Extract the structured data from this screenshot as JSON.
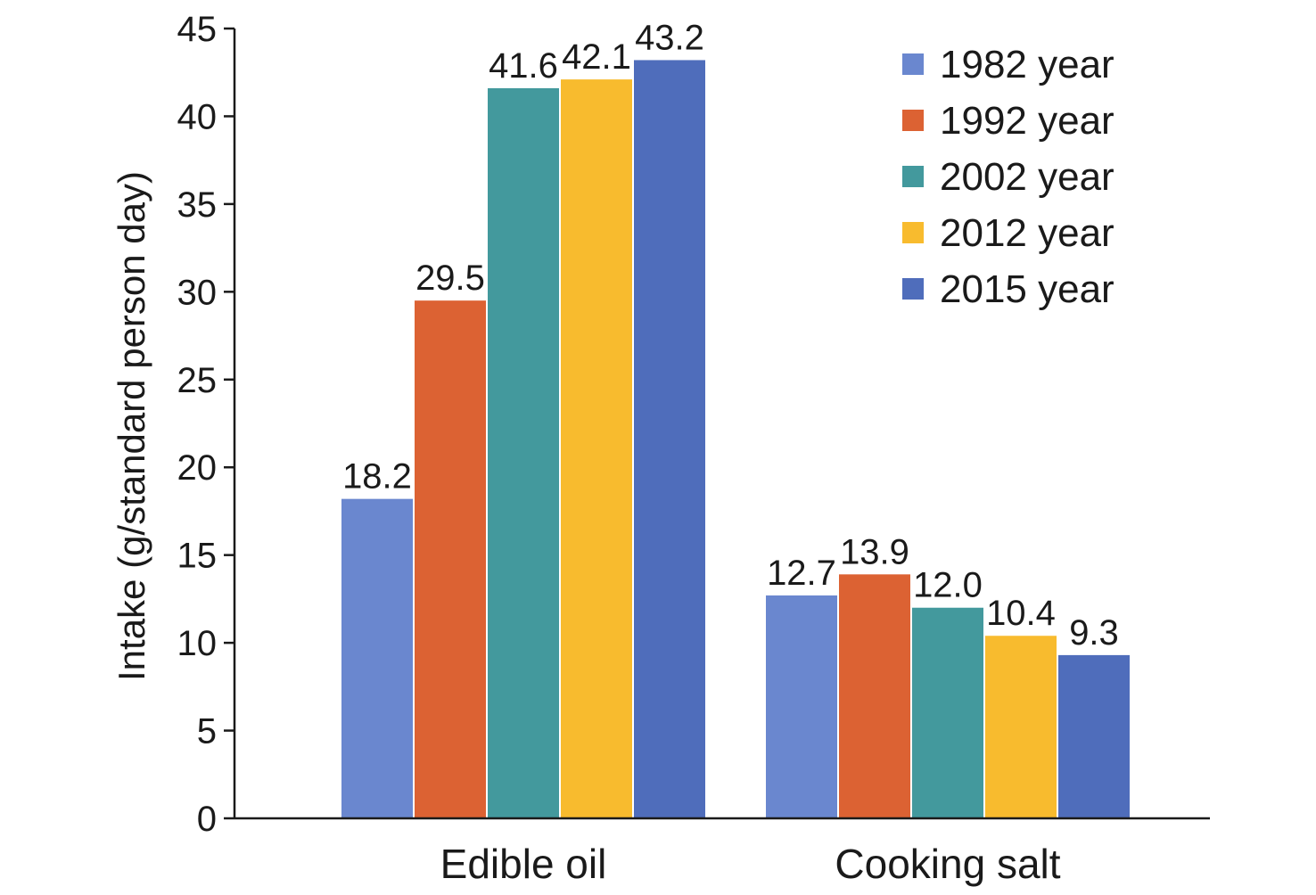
{
  "chart_data": {
    "type": "bar",
    "title": "",
    "xlabel": "",
    "ylabel": "Intake (g/standard person day)",
    "ylim": [
      0,
      45
    ],
    "yticks": [
      0,
      5,
      10,
      15,
      20,
      25,
      30,
      35,
      40,
      45
    ],
    "categories": [
      "Edible oil",
      "Cooking salt"
    ],
    "series": [
      {
        "name": "1982 year",
        "color": "#6a87cf",
        "values": [
          18.2,
          12.7
        ],
        "labels": [
          "18.2",
          "12.7"
        ]
      },
      {
        "name": "1992 year",
        "color": "#dc6233",
        "values": [
          29.5,
          13.9
        ],
        "labels": [
          "29.5",
          "13.9"
        ]
      },
      {
        "name": "2002 year",
        "color": "#43999d",
        "values": [
          41.6,
          12.0
        ],
        "labels": [
          "41.6",
          "12.0"
        ]
      },
      {
        "name": "2012 year",
        "color": "#f8bb2e",
        "values": [
          42.1,
          10.4
        ],
        "labels": [
          "42.1",
          "10.4"
        ]
      },
      {
        "name": "2015 year",
        "color": "#4f6dbb",
        "values": [
          43.2,
          9.3
        ],
        "labels": [
          "43.2",
          "9.3"
        ]
      }
    ],
    "legend": {
      "position": "top-right"
    },
    "grid": false
  }
}
